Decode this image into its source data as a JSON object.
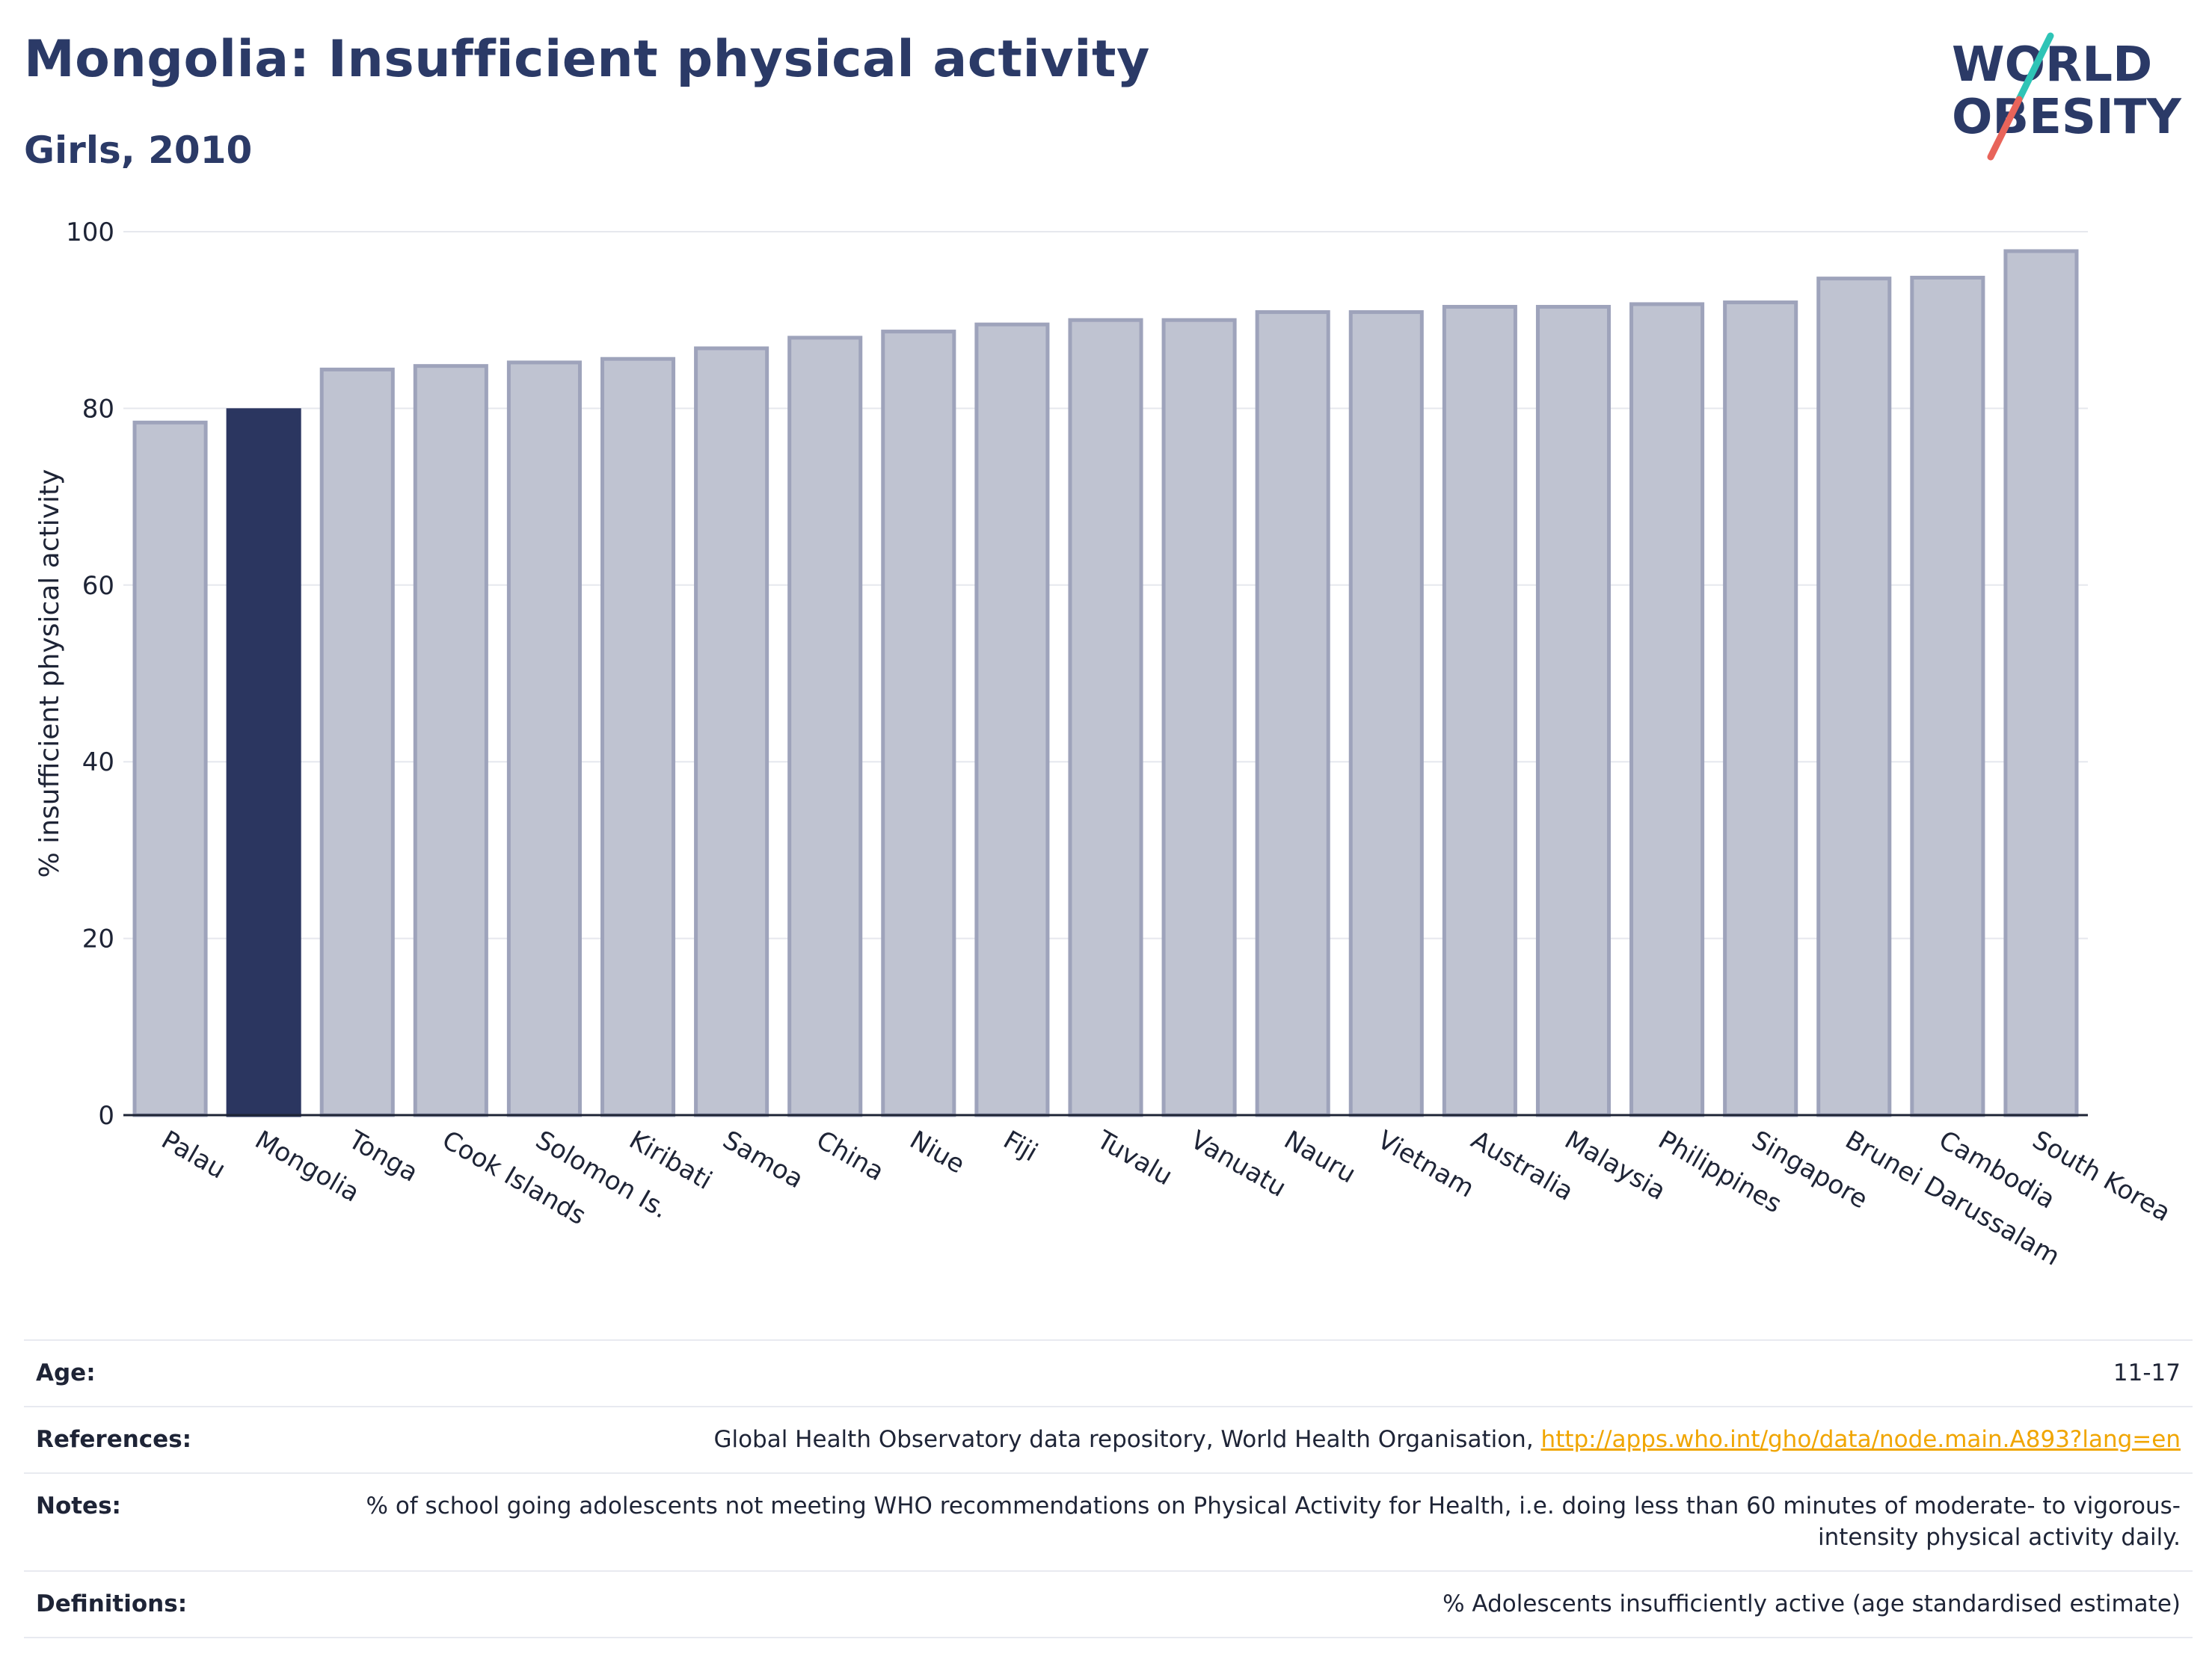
{
  "header": {
    "title": "Mongolia: Insufficient physical activity",
    "subtitle": "Girls, 2010"
  },
  "logo": {
    "line1": "WORLD",
    "line2": "OBESITY",
    "text_color": "#2b3a67",
    "slash_colors": [
      "#2ec4b6",
      "#e8645a"
    ]
  },
  "chart_data": {
    "type": "bar",
    "ylabel": "% insufficient physical activity",
    "ylim": [
      0,
      100
    ],
    "yticks": [
      0,
      20,
      40,
      60,
      80,
      100
    ],
    "grid": true,
    "highlight": "Mongolia",
    "colors": {
      "bar": "#bfc3d1",
      "bar_border": "#9ea3bb",
      "highlight": "#2b3660",
      "grid": "#e6e8ee",
      "axis": "#1e2436"
    },
    "categories": [
      "Palau",
      "Mongolia",
      "Tonga",
      "Cook Islands",
      "Solomon Is.",
      "Kiribati",
      "Samoa",
      "China",
      "Niue",
      "Fiji",
      "Tuvalu",
      "Vanuatu",
      "Nauru",
      "Vietnam",
      "Australia",
      "Malaysia",
      "Philippines",
      "Singapore",
      "Brunei Darussalam",
      "Cambodia",
      "South Korea"
    ],
    "values": [
      78.4,
      79.8,
      84.4,
      84.8,
      85.2,
      85.6,
      86.8,
      88.0,
      88.7,
      89.5,
      90.0,
      90.0,
      90.9,
      90.9,
      91.5,
      91.5,
      91.8,
      92.0,
      94.7,
      94.8,
      97.8
    ]
  },
  "info": [
    {
      "label": "Age:",
      "value": "11-17"
    },
    {
      "label": "References:",
      "value": "Global Health Observatory data repository, World Health Organisation, ",
      "link": "http://apps.who.int/gho/data/node.main.A893?lang=en"
    },
    {
      "label": "Notes:",
      "value": "% of school going adolescents not meeting WHO recommendations on Physical Activity for Health, i.e. doing less than 60 minutes of moderate- to vigorous-intensity physical activity daily."
    },
    {
      "label": "Definitions:",
      "value": "% Adolescents insufficiently active (age standardised estimate)"
    }
  ]
}
